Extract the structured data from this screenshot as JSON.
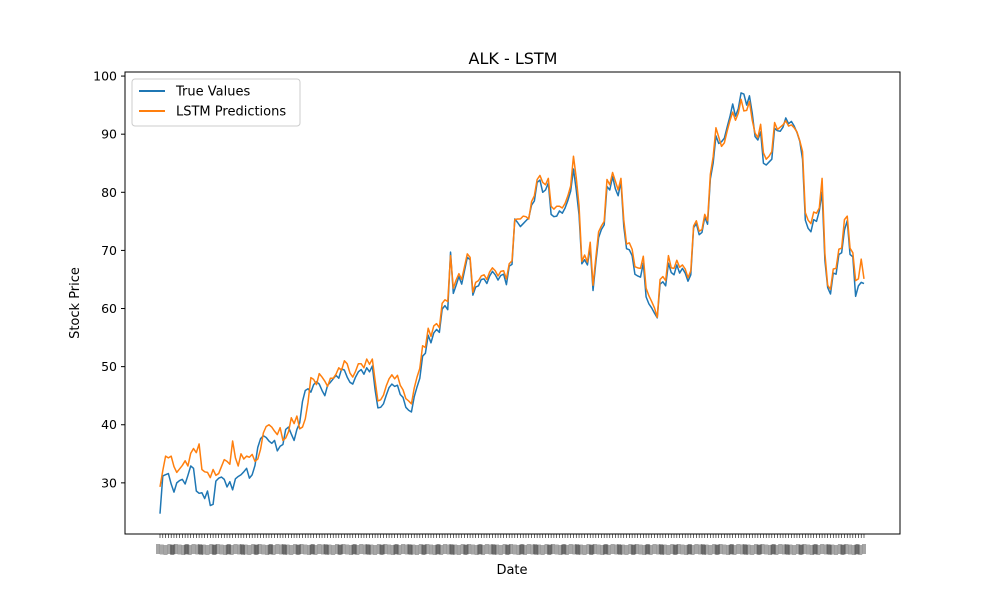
{
  "chart_data": {
    "type": "line",
    "title": "ALK - LSTM",
    "xlabel": "Date",
    "ylabel": "Stock Price",
    "ylim": [
      21.2,
      100.7
    ],
    "y_ticks": [
      30,
      40,
      50,
      60,
      70,
      80,
      90,
      100
    ],
    "grid": false,
    "legend_position": "top-left",
    "x_tick_labels_note": "overlapping date labels (illegible)",
    "series": [
      {
        "name": "True Values",
        "color": "#1f77b4",
        "values": [
          24.7,
          31.2,
          31.4,
          31.6,
          29.8,
          28.4,
          30.0,
          30.4,
          30.6,
          29.8,
          31.3,
          32.9,
          32.5,
          28.6,
          28.2,
          28.3,
          27.3,
          28.6,
          26.1,
          26.3,
          30.3,
          30.8,
          31.0,
          30.6,
          29.3,
          30.2,
          28.8,
          30.7,
          31.1,
          31.4,
          31.9,
          32.5,
          30.8,
          31.4,
          33.0,
          36.1,
          37.6,
          38.1,
          37.8,
          37.2,
          36.8,
          37.3,
          35.5,
          36.3,
          36.6,
          39.2,
          39.6,
          38.4,
          37.3,
          39.2,
          40.3,
          44.0,
          45.9,
          46.2,
          45.6,
          46.9,
          47.4,
          47.0,
          45.9,
          45.0,
          46.8,
          47.3,
          47.9,
          48.5,
          48.0,
          49.6,
          49.4,
          48.2,
          47.3,
          47.0,
          48.2,
          49.1,
          49.5,
          48.7,
          49.8,
          49.1,
          50.1,
          46.0,
          42.9,
          43.0,
          43.6,
          45.1,
          46.4,
          47.0,
          46.6,
          46.8,
          45.2,
          44.7,
          43.0,
          42.5,
          42.2,
          44.8,
          46.5,
          48.0,
          51.8,
          52.3,
          55.4,
          54.1,
          55.8,
          56.4,
          55.9,
          59.9,
          60.5,
          59.8,
          69.7,
          62.6,
          64.0,
          65.5,
          64.2,
          66.5,
          68.8,
          68.4,
          62.3,
          63.7,
          63.9,
          65.0,
          65.1,
          64.3,
          65.6,
          66.4,
          65.8,
          64.9,
          65.7,
          65.9,
          64.1,
          67.3,
          67.6,
          75.4,
          74.8,
          74.1,
          74.6,
          75.1,
          75.6,
          77.8,
          78.5,
          81.7,
          82.1,
          80.0,
          80.4,
          81.6,
          76.2,
          75.8,
          75.9,
          76.8,
          76.4,
          77.3,
          78.6,
          80.2,
          84.0,
          80.4,
          76.1,
          67.7,
          68.4,
          67.5,
          70.5,
          63.1,
          67.9,
          72.2,
          73.6,
          74.4,
          81.0,
          80.4,
          82.7,
          80.6,
          79.4,
          81.9,
          74.2,
          70.3,
          70.1,
          69.1,
          65.9,
          65.6,
          65.4,
          67.8,
          62.0,
          60.8,
          60.1,
          59.2,
          58.4,
          64.2,
          64.6,
          63.9,
          67.8,
          66.2,
          65.8,
          67.5,
          66.1,
          66.9,
          66.1,
          64.7,
          65.8,
          73.9,
          74.6,
          72.7,
          73.1,
          75.7,
          74.5,
          82.3,
          85.0,
          89.7,
          88.4,
          88.7,
          89.3,
          91.2,
          93.0,
          95.2,
          93.1,
          94.4,
          97.1,
          96.9,
          95.0,
          96.6,
          93.6,
          89.6,
          89.0,
          90.4,
          85.0,
          84.7,
          85.2,
          85.7,
          91.0,
          90.6,
          90.5,
          91.2,
          92.8,
          91.8,
          92.2,
          91.4,
          90.3,
          88.8,
          85.7,
          75.2,
          73.8,
          73.2,
          75.3,
          75.0,
          76.8,
          80.0,
          68.3,
          63.6,
          62.5,
          66.1,
          65.9,
          69.3,
          69.6,
          73.5,
          75.1,
          69.3,
          68.9,
          62.1,
          63.9,
          64.5,
          64.3
        ]
      },
      {
        "name": "LSTM Predictions",
        "color": "#ff7f0e",
        "values": [
          29.3,
          32.1,
          34.6,
          34.3,
          34.6,
          32.8,
          31.8,
          32.4,
          33.0,
          33.8,
          32.9,
          35.1,
          35.9,
          35.2,
          36.7,
          32.3,
          31.9,
          31.8,
          30.9,
          32.3,
          31.3,
          31.6,
          32.8,
          34.0,
          33.7,
          33.2,
          37.2,
          34.3,
          32.9,
          35.0,
          34.1,
          34.6,
          34.4,
          34.9,
          33.7,
          34.1,
          35.8,
          38.6,
          39.7,
          40.0,
          39.6,
          38.9,
          38.3,
          39.5,
          37.3,
          37.7,
          38.8,
          41.2,
          40.2,
          41.5,
          39.3,
          39.6,
          41.0,
          43.9,
          48.1,
          47.8,
          46.9,
          48.8,
          48.2,
          47.5,
          46.6,
          48.0,
          48.0,
          48.7,
          49.8,
          49.4,
          51.0,
          50.5,
          48.9,
          48.2,
          49.2,
          50.5,
          50.5,
          49.8,
          51.3,
          50.4,
          51.3,
          47.6,
          44.1,
          44.3,
          45.1,
          46.7,
          47.9,
          48.6,
          47.9,
          48.5,
          46.8,
          46.0,
          44.5,
          44.1,
          43.6,
          46.3,
          48.2,
          49.7,
          53.6,
          53.3,
          56.6,
          55.2,
          57.0,
          57.4,
          56.7,
          60.9,
          61.5,
          61.2,
          69.1,
          63.5,
          64.9,
          66.0,
          65.0,
          67.2,
          69.4,
          68.8,
          62.8,
          64.5,
          64.8,
          65.6,
          65.8,
          65.0,
          66.3,
          67.0,
          66.5,
          65.6,
          66.4,
          66.5,
          65.1,
          67.7,
          68.2,
          75.3,
          75.4,
          75.4,
          75.9,
          75.8,
          75.4,
          78.4,
          79.4,
          82.2,
          82.9,
          81.7,
          81.3,
          82.4,
          77.6,
          77.1,
          77.6,
          77.6,
          77.3,
          78.1,
          79.4,
          81.1,
          86.2,
          82.5,
          77.7,
          68.1,
          69.2,
          68.0,
          71.4,
          64.0,
          68.7,
          73.2,
          74.2,
          75.0,
          82.2,
          81.3,
          83.4,
          81.9,
          80.4,
          82.4,
          75.3,
          71.1,
          71.3,
          70.2,
          67.2,
          67.0,
          66.9,
          69.0,
          63.5,
          62.2,
          61.2,
          60.1,
          58.5,
          65.0,
          65.5,
          64.8,
          69.1,
          67.0,
          66.9,
          68.3,
          67.1,
          67.5,
          66.8,
          65.3,
          66.5,
          74.2,
          75.1,
          73.3,
          73.6,
          76.2,
          75.1,
          83.1,
          86.1,
          91.1,
          89.5,
          87.9,
          88.5,
          90.5,
          92.3,
          93.8,
          92.4,
          93.6,
          96.0,
          94.0,
          94.1,
          95.6,
          92.4,
          90.2,
          89.4,
          91.7,
          86.8,
          85.7,
          86.2,
          87.0,
          92.0,
          90.8,
          91.2,
          91.6,
          92.3,
          91.4,
          91.6,
          91.1,
          90.4,
          88.9,
          87.0,
          76.5,
          75.2,
          74.6,
          76.6,
          76.4,
          77.3,
          82.4,
          69.5,
          64.0,
          63.3,
          66.8,
          66.9,
          70.2,
          70.4,
          75.3,
          75.9,
          70.4,
          69.6,
          64.8,
          65.1,
          68.5,
          65.1
        ]
      }
    ]
  }
}
